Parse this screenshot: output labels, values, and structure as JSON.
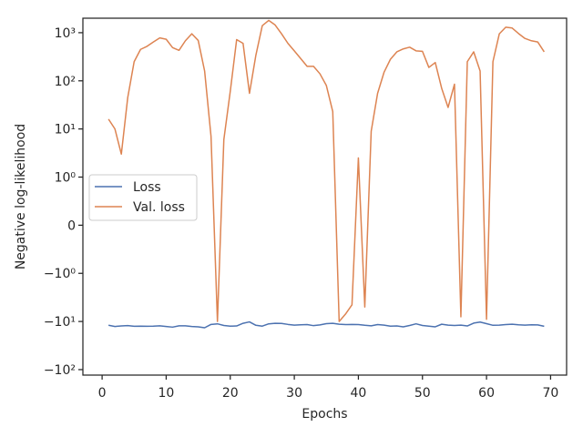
{
  "chart_data": {
    "type": "line",
    "xlabel": "Epochs",
    "ylabel": "Negative log-likelihood",
    "yscale": "symlog",
    "xlim": [
      -3,
      72.5
    ],
    "ylim": [
      -130,
      2000
    ],
    "grid": false,
    "legend_position": "center-left",
    "x_ticks": [
      {
        "value": 0,
        "label": "0"
      },
      {
        "value": 10,
        "label": "10"
      },
      {
        "value": 20,
        "label": "20"
      },
      {
        "value": 30,
        "label": "30"
      },
      {
        "value": 40,
        "label": "40"
      },
      {
        "value": 50,
        "label": "50"
      },
      {
        "value": 60,
        "label": "60"
      },
      {
        "value": 70,
        "label": "70"
      }
    ],
    "y_ticks": [
      {
        "value": 1000,
        "label": "10³"
      },
      {
        "value": 100,
        "label": "10²"
      },
      {
        "value": 10,
        "label": "10¹"
      },
      {
        "value": 1,
        "label": "10⁰"
      },
      {
        "value": 0,
        "label": "0"
      },
      {
        "value": -1,
        "label": "−10⁰"
      },
      {
        "value": -10,
        "label": "−10¹"
      },
      {
        "value": -100,
        "label": "−10²"
      }
    ],
    "x": [
      1,
      2,
      3,
      4,
      5,
      6,
      7,
      8,
      9,
      10,
      11,
      12,
      13,
      14,
      15,
      16,
      17,
      18,
      19,
      20,
      21,
      22,
      23,
      24,
      25,
      26,
      27,
      28,
      29,
      30,
      31,
      32,
      33,
      34,
      35,
      36,
      37,
      38,
      39,
      40,
      41,
      42,
      43,
      44,
      45,
      46,
      47,
      48,
      49,
      50,
      51,
      52,
      53,
      54,
      55,
      56,
      57,
      58,
      59,
      60,
      61,
      62,
      63,
      64,
      65,
      66,
      67,
      68,
      69
    ],
    "series": [
      {
        "name": "Loss",
        "color": "#4c72b0",
        "values": [
          -12,
          -12.7,
          -12.4,
          -12.2,
          -12.6,
          -12.5,
          -12.6,
          -12.5,
          -12.3,
          -12.7,
          -13.1,
          -12.3,
          -12.3,
          -12.7,
          -12.9,
          -13.5,
          -11.5,
          -11.2,
          -12.1,
          -12.5,
          -12.4,
          -10.9,
          -10.2,
          -12,
          -12.5,
          -11.2,
          -10.9,
          -11,
          -11.5,
          -11.9,
          -11.7,
          -11.6,
          -12.2,
          -11.8,
          -11.1,
          -10.9,
          -11.4,
          -11.6,
          -11.5,
          -11.6,
          -12,
          -12.3,
          -11.6,
          -11.9,
          -12.5,
          -12.4,
          -12.9,
          -12.1,
          -11.2,
          -12.1,
          -12.5,
          -12.9,
          -11.4,
          -11.9,
          -12.1,
          -11.9,
          -12.4,
          -10.8,
          -10.3,
          -11.1,
          -12,
          -11.9,
          -11.6,
          -11.4,
          -11.7,
          -11.9,
          -11.7,
          -11.8,
          -12.6
        ]
      },
      {
        "name": "Val. loss",
        "color": "#dd8452",
        "values": [
          16,
          10,
          3,
          45,
          250,
          450,
          520,
          640,
          780,
          730,
          490,
          430,
          680,
          950,
          690,
          160,
          7,
          -10,
          6,
          60,
          720,
          600,
          55,
          340,
          1400,
          1800,
          1450,
          950,
          600,
          420,
          290,
          200,
          200,
          140,
          80,
          23,
          -10,
          -7,
          -4.5,
          2.5,
          -5,
          9,
          55,
          150,
          280,
          400,
          460,
          500,
          420,
          410,
          190,
          240,
          70,
          28,
          85,
          -8,
          250,
          400,
          160,
          -9,
          250,
          950,
          1300,
          1250,
          960,
          760,
          680,
          640,
          400
        ]
      }
    ]
  }
}
